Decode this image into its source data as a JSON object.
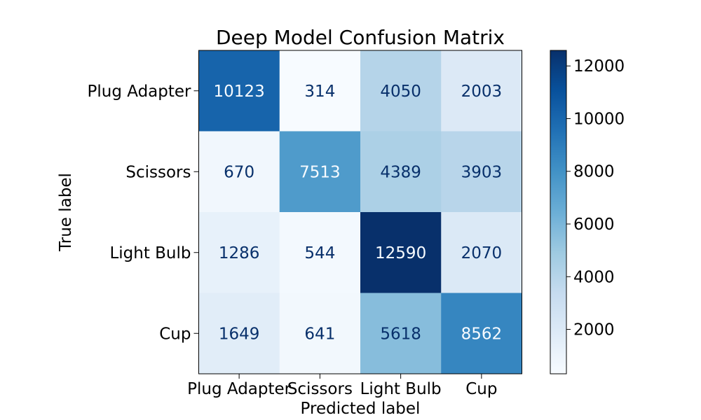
{
  "chart_data": {
    "type": "heatmap",
    "title": "Deep Model Confusion Matrix",
    "xlabel": "Predicted label",
    "ylabel": "True label",
    "x_categories": [
      "Plug Adapter",
      "Scissors",
      "Light Bulb",
      "Cup"
    ],
    "y_categories": [
      "Plug Adapter",
      "Scissors",
      "Light Bulb",
      "Cup"
    ],
    "values": [
      [
        10123,
        314,
        4050,
        2003
      ],
      [
        670,
        7513,
        4389,
        3903
      ],
      [
        1286,
        544,
        12590,
        2070
      ],
      [
        1649,
        641,
        5618,
        8562
      ]
    ],
    "colormap": "Blues",
    "color_range": [
      314,
      12590
    ],
    "colorbar_ticks": [
      2000,
      4000,
      6000,
      8000,
      10000,
      12000
    ],
    "colorbar_tick_labels": [
      "2000",
      "4000",
      "6000",
      "8000",
      "10000",
      "12000"
    ],
    "text_color_dark": "#08306b",
    "text_color_light": "#f7fbff",
    "grid": false
  }
}
